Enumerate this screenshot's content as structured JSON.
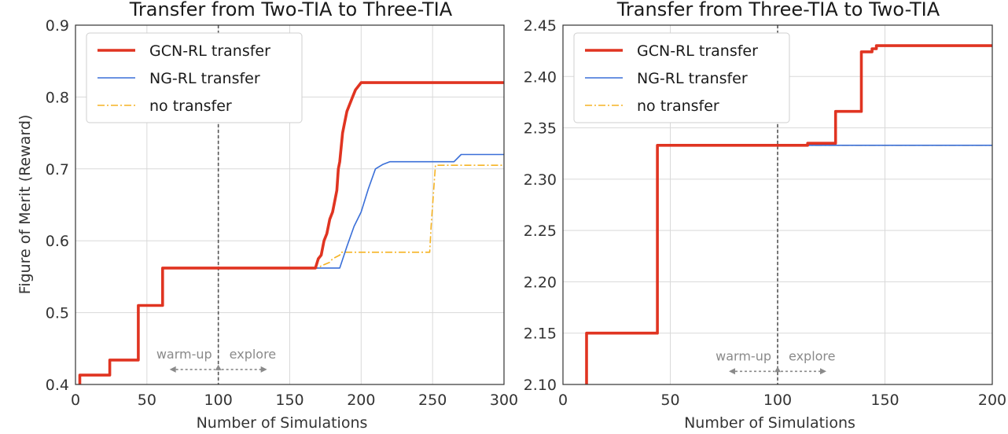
{
  "chart_data": [
    {
      "type": "line",
      "title": "Transfer from Two-TIA to Three-TIA",
      "xlabel": "Number of Simulations",
      "ylabel": "Figure of Merit (Reward)",
      "xlim": [
        0,
        300
      ],
      "ylim": [
        0.4,
        0.9
      ],
      "xticks": [
        0,
        50,
        100,
        150,
        200,
        250,
        300
      ],
      "yticks": [
        0.4,
        0.5,
        0.6,
        0.7,
        0.8,
        0.9
      ],
      "xtick_labels": [
        "0",
        "50",
        "100",
        "150",
        "200",
        "250",
        "300"
      ],
      "ytick_labels": [
        "0.4",
        "0.5",
        "0.6",
        "0.7",
        "0.8",
        "0.9"
      ],
      "grid": true,
      "legend_position": "top-left",
      "divider_x": 100,
      "annotations": {
        "left": "warm-up",
        "right": "explore",
        "y": 0.434
      },
      "series": [
        {
          "name": "no transfer",
          "color": "#f5b324",
          "style": "dashdot",
          "x": [
            3,
            3,
            24,
            24,
            44,
            44,
            61,
            61,
            170,
            172,
            178,
            180,
            185,
            186,
            248,
            249,
            252,
            300
          ],
          "y": [
            0.4,
            0.413,
            0.413,
            0.434,
            0.434,
            0.51,
            0.51,
            0.562,
            0.562,
            0.565,
            0.57,
            0.575,
            0.58,
            0.584,
            0.584,
            0.62,
            0.705,
            0.705
          ]
        },
        {
          "name": "NG-RL transfer",
          "color": "#3a6fd8",
          "style": "solid",
          "x": [
            3,
            3,
            24,
            24,
            44,
            44,
            61,
            61,
            185,
            190,
            195,
            200,
            205,
            210,
            215,
            220,
            230,
            265,
            270,
            300
          ],
          "y": [
            0.4,
            0.413,
            0.413,
            0.434,
            0.434,
            0.51,
            0.51,
            0.562,
            0.562,
            0.592,
            0.62,
            0.64,
            0.672,
            0.7,
            0.706,
            0.71,
            0.71,
            0.71,
            0.72,
            0.72
          ]
        },
        {
          "name": "GCN-RL transfer",
          "color": "#e03421",
          "style": "solid",
          "x": [
            3,
            3,
            24,
            24,
            44,
            44,
            61,
            61,
            168,
            170,
            172,
            174,
            176,
            178,
            180,
            182,
            183,
            184,
            185,
            186,
            187,
            188,
            190,
            192,
            194,
            196,
            198,
            200,
            300
          ],
          "y": [
            0.4,
            0.413,
            0.413,
            0.434,
            0.434,
            0.51,
            0.51,
            0.562,
            0.562,
            0.575,
            0.58,
            0.6,
            0.61,
            0.63,
            0.64,
            0.66,
            0.67,
            0.7,
            0.71,
            0.73,
            0.75,
            0.76,
            0.78,
            0.79,
            0.8,
            0.81,
            0.815,
            0.82,
            0.82
          ]
        }
      ]
    },
    {
      "type": "line",
      "title": "Transfer from Three-TIA to Two-TIA",
      "xlabel": "Number of Simulations",
      "ylabel": "",
      "xlim": [
        0,
        200
      ],
      "ylim": [
        2.1,
        2.45
      ],
      "xticks": [
        0,
        50,
        100,
        150,
        200
      ],
      "yticks": [
        2.1,
        2.15,
        2.2,
        2.25,
        2.3,
        2.35,
        2.4,
        2.45
      ],
      "xtick_labels": [
        "0",
        "50",
        "100",
        "150",
        "200"
      ],
      "ytick_labels": [
        "2.10",
        "2.15",
        "2.20",
        "2.25",
        "2.30",
        "2.35",
        "2.40",
        "2.45"
      ],
      "grid": true,
      "legend_position": "top-left",
      "divider_x": 100,
      "annotations": {
        "left": "warm-up",
        "right": "explore",
        "y": 2.122
      },
      "series": [
        {
          "name": "no transfer",
          "color": "#f5b324",
          "style": "dashdot",
          "x": [
            11,
            11,
            44,
            44,
            200
          ],
          "y": [
            2.1,
            2.15,
            2.15,
            2.333,
            2.333
          ]
        },
        {
          "name": "NG-RL transfer",
          "color": "#3a6fd8",
          "style": "solid",
          "x": [
            11,
            11,
            44,
            44,
            200
          ],
          "y": [
            2.1,
            2.15,
            2.15,
            2.333,
            2.333
          ]
        },
        {
          "name": "GCN-RL transfer",
          "color": "#e03421",
          "style": "solid",
          "x": [
            11,
            11,
            44,
            44,
            114,
            114,
            127,
            127,
            139,
            139,
            144,
            144,
            146,
            146,
            200
          ],
          "y": [
            2.1,
            2.15,
            2.15,
            2.333,
            2.333,
            2.335,
            2.335,
            2.366,
            2.366,
            2.424,
            2.424,
            2.427,
            2.427,
            2.43,
            2.43
          ]
        }
      ]
    }
  ]
}
